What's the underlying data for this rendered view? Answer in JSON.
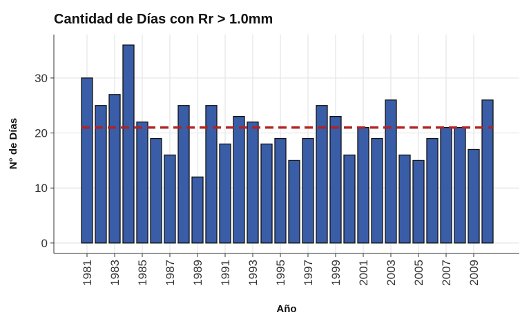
{
  "chart_data": {
    "type": "bar",
    "title": "Cantidad de Días con Rr > 1.0mm",
    "xlabel": "Año",
    "ylabel": "N° de Días",
    "x": [
      1981,
      1982,
      1983,
      1984,
      1985,
      1986,
      1987,
      1988,
      1989,
      1990,
      1991,
      1992,
      1993,
      1994,
      1995,
      1996,
      1997,
      1998,
      1999,
      2000,
      2001,
      2002,
      2003,
      2004,
      2005,
      2006,
      2007,
      2008,
      2009,
      2010
    ],
    "values": [
      30,
      25,
      27,
      36,
      22,
      19,
      16,
      25,
      12,
      25,
      18,
      23,
      22,
      18,
      19,
      15,
      19,
      25,
      23,
      16,
      21,
      19,
      26,
      16,
      15,
      19,
      21,
      21,
      17,
      26
    ],
    "color": "#3a5da8",
    "edge_color": "#111111",
    "xlim": [
      1978.6,
      2012.3
    ],
    "xticks": [
      1981,
      1983,
      1985,
      1987,
      1989,
      1991,
      1993,
      1995,
      1997,
      1999,
      2001,
      2003,
      2005,
      2007,
      2009
    ],
    "ylim": [
      -1.9,
      37.9
    ],
    "yticks": [
      0,
      10,
      20,
      30
    ],
    "grid": true,
    "reference_line": {
      "value": 21,
      "color": "#b22222"
    }
  }
}
